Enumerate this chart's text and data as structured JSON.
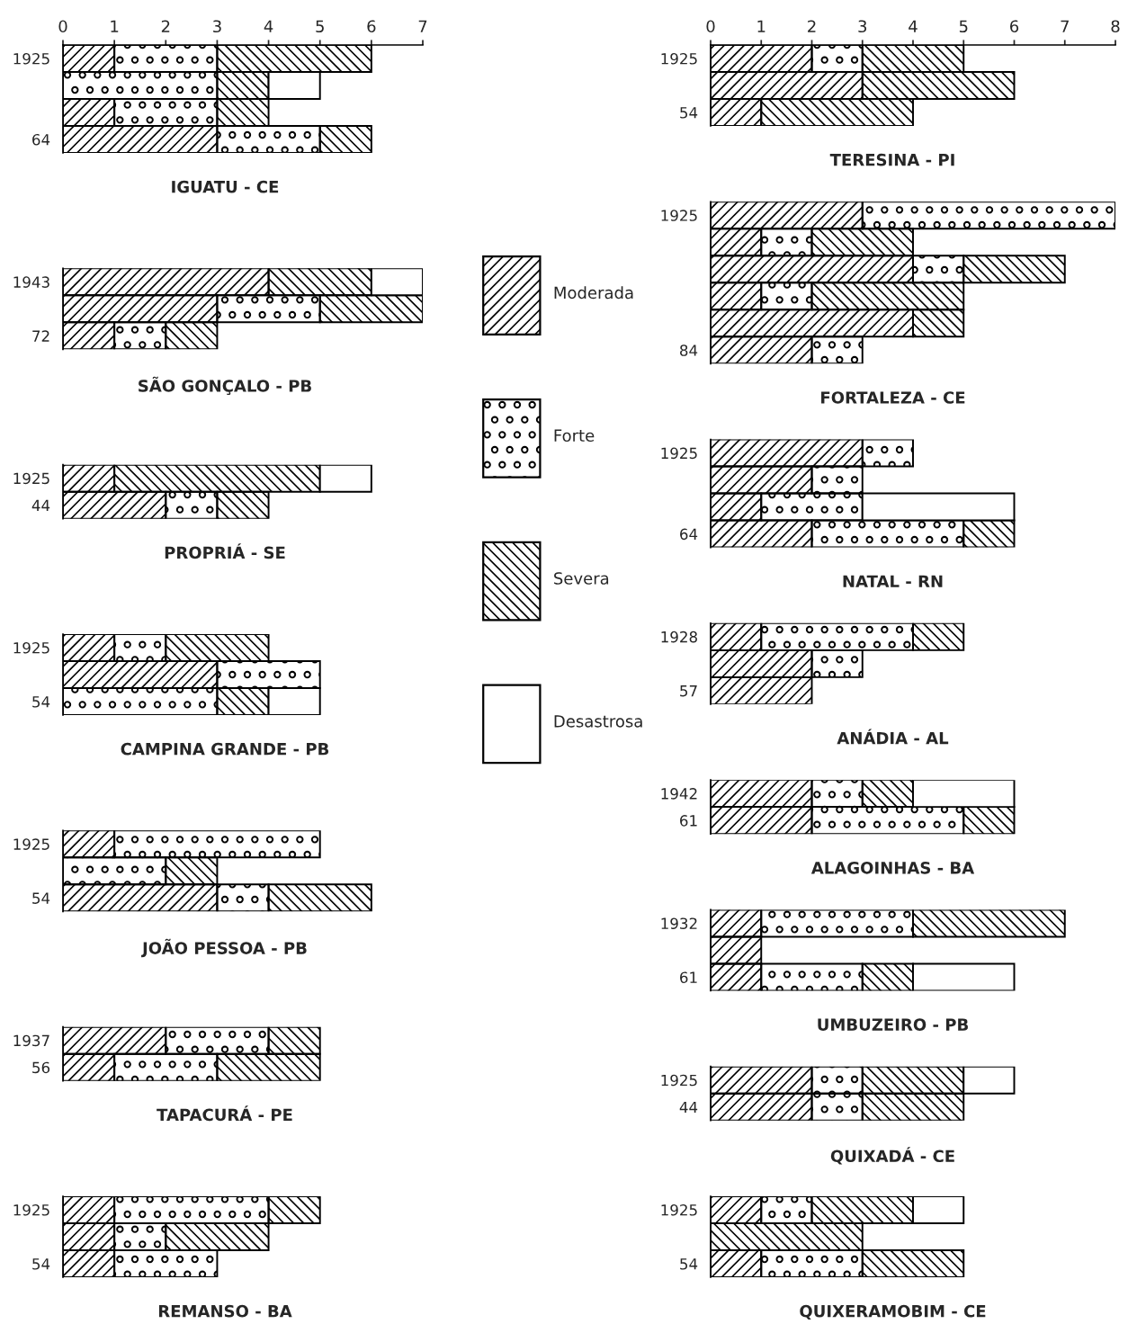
{
  "chart_data": [
    {
      "type": "bar",
      "orientation": "horizontal",
      "stacked": true,
      "title": "IGUATU - CE",
      "categories": [
        "1925",
        null,
        null,
        "64"
      ],
      "xlim": [
        0,
        7
      ],
      "xticks": [
        0,
        1,
        2,
        3,
        4,
        5,
        6,
        7
      ],
      "legend": "right",
      "series": [
        {
          "name": "Moderada",
          "color": "#000000",
          "values": [
            1,
            0,
            1,
            3
          ]
        },
        {
          "name": "Forte",
          "color": "#000000",
          "values": [
            2,
            3,
            2,
            2
          ]
        },
        {
          "name": "Severa",
          "color": "#000000",
          "values": [
            3,
            1,
            1,
            1
          ]
        },
        {
          "name": "Desastrosa",
          "color": "#ffffff",
          "values": [
            0,
            1,
            0,
            0
          ]
        }
      ]
    },
    {
      "type": "bar",
      "orientation": "horizontal",
      "stacked": true,
      "title": "SÃO GONÇALO - PB",
      "categories": [
        "1943",
        null,
        "72"
      ],
      "xlim": [
        0,
        7
      ],
      "tick_labels": "y",
      "series": [
        {
          "color": "#000000",
          "values": [
            4,
            3,
            1
          ]
        },
        {
          "color": "#000000",
          "values": [
            0,
            2,
            1
          ]
        },
        {
          "color": "#000000",
          "values": [
            2,
            2,
            1
          ]
        },
        {
          "color": "#ffffff",
          "values": [
            1,
            0,
            0
          ]
        }
      ]
    },
    {
      "type": "bar",
      "orientation": "horizontal",
      "stacked": true,
      "title": "PROPRIÁ - SE",
      "categories": [
        "1925",
        "44"
      ],
      "xlim": [
        0,
        7
      ],
      "tick_labels": "y",
      "series": [
        {
          "color": "#000000",
          "values": [
            1,
            2
          ]
        },
        {
          "color": "#000000",
          "values": [
            0,
            1
          ]
        },
        {
          "color": "#000000",
          "values": [
            4,
            1
          ]
        },
        {
          "color": "#ffffff",
          "values": [
            1,
            0
          ]
        }
      ]
    },
    {
      "type": "bar",
      "orientation": "horizontal",
      "stacked": true,
      "title": "CAMPINA GRANDE - PB",
      "categories": [
        "1925",
        null,
        "54"
      ],
      "xlim": [
        0,
        7
      ],
      "tick_labels": "y",
      "series": [
        {
          "color": "#000000",
          "values": [
            1,
            3,
            0
          ]
        },
        {
          "color": "#000000",
          "values": [
            1,
            2,
            3
          ]
        },
        {
          "color": "#000000",
          "values": [
            2,
            0,
            1
          ]
        },
        {
          "color": "#ffffff",
          "values": [
            0,
            0,
            1
          ]
        }
      ]
    },
    {
      "type": "bar",
      "orientation": "horizontal",
      "stacked": true,
      "title": "JOÃO PESSOA - PB",
      "categories": [
        "1925",
        null,
        "54"
      ],
      "xlim": [
        0,
        7
      ],
      "tick_labels": "y",
      "series": [
        {
          "color": "#000000",
          "values": [
            1,
            0,
            3
          ]
        },
        {
          "color": "#000000",
          "values": [
            4,
            2,
            1
          ]
        },
        {
          "color": "#000000",
          "values": [
            0,
            1,
            2
          ]
        },
        {
          "color": "#ffffff",
          "values": [
            0,
            0,
            0
          ]
        }
      ]
    },
    {
      "type": "bar",
      "orientation": "horizontal",
      "stacked": true,
      "title": "TAPACURÁ - PE",
      "categories": [
        "1937",
        "56"
      ],
      "xlim": [
        0,
        7
      ],
      "tick_labels": "y",
      "series": [
        {
          "color": "#000000",
          "values": [
            2,
            1
          ]
        },
        {
          "color": "#000000",
          "values": [
            2,
            2
          ]
        },
        {
          "color": "#000000",
          "values": [
            1,
            2
          ]
        },
        {
          "color": "#ffffff",
          "values": [
            0,
            0
          ]
        }
      ]
    },
    {
      "type": "bar",
      "orientation": "horizontal",
      "stacked": true,
      "title": "REMANSO - BA",
      "categories": [
        "1925",
        null,
        "54"
      ],
      "xlim": [
        0,
        7
      ],
      "tick_labels": "y",
      "series": [
        {
          "color": "#000000",
          "values": [
            1,
            1,
            1
          ]
        },
        {
          "color": "#000000",
          "values": [
            3,
            1,
            2
          ]
        },
        {
          "color": "#000000",
          "values": [
            1,
            2,
            0
          ]
        },
        {
          "color": "#ffffff",
          "values": [
            0,
            0,
            0
          ]
        }
      ]
    },
    {
      "type": "bar",
      "orientation": "horizontal",
      "stacked": true,
      "title": "TERESINA - PI",
      "categories": [
        "1925",
        null,
        "54"
      ],
      "xlim": [
        0,
        8
      ],
      "xticks": [
        0,
        1,
        2,
        3,
        4,
        5,
        6,
        7,
        8
      ],
      "series": [
        {
          "color": "#000000",
          "values": [
            2,
            3,
            1
          ]
        },
        {
          "color": "#000000",
          "values": [
            1,
            0,
            0
          ]
        },
        {
          "color": "#000000",
          "values": [
            2,
            3,
            3
          ]
        },
        {
          "color": "#ffffff",
          "values": [
            0,
            0,
            0
          ]
        }
      ]
    },
    {
      "type": "bar",
      "orientation": "horizontal",
      "stacked": true,
      "title": "FORTALEZA - CE",
      "categories": [
        "1925",
        null,
        null,
        null,
        null,
        "84"
      ],
      "xlim": [
        0,
        8
      ],
      "tick_labels": "y",
      "series": [
        {
          "color": "#000000",
          "values": [
            3,
            1,
            4,
            1,
            4,
            2
          ]
        },
        {
          "color": "#000000",
          "values": [
            5,
            1,
            1,
            1,
            0,
            1
          ]
        },
        {
          "color": "#000000",
          "values": [
            0,
            2,
            2,
            3,
            1,
            0
          ]
        },
        {
          "color": "#ffffff",
          "values": [
            0,
            0,
            0,
            0,
            0,
            0
          ]
        }
      ]
    },
    {
      "type": "bar",
      "orientation": "horizontal",
      "stacked": true,
      "title": "NATAL - RN",
      "categories": [
        "1925",
        null,
        null,
        "64"
      ],
      "xlim": [
        0,
        8
      ],
      "tick_labels": "y",
      "series": [
        {
          "color": "#000000",
          "values": [
            3,
            2,
            1,
            2
          ]
        },
        {
          "color": "#000000",
          "values": [
            1,
            1,
            2,
            3
          ]
        },
        {
          "color": "#000000",
          "values": [
            0,
            0,
            0,
            1
          ]
        },
        {
          "color": "#ffffff",
          "values": [
            0,
            0,
            3,
            0
          ]
        }
      ]
    },
    {
      "type": "bar",
      "orientation": "horizontal",
      "stacked": true,
      "title": "ANÁDIA - AL",
      "categories": [
        "1928",
        null,
        "57"
      ],
      "xlim": [
        0,
        8
      ],
      "tick_labels": "y",
      "series": [
        {
          "color": "#000000",
          "values": [
            1,
            2,
            2
          ]
        },
        {
          "color": "#000000",
          "values": [
            3,
            1,
            0
          ]
        },
        {
          "color": "#000000",
          "values": [
            1,
            0,
            0
          ]
        },
        {
          "color": "#ffffff",
          "values": [
            0,
            0,
            0
          ]
        }
      ]
    },
    {
      "type": "bar",
      "orientation": "horizontal",
      "stacked": true,
      "title": "ALAGOINHAS - BA",
      "categories": [
        "1942",
        "61"
      ],
      "xlim": [
        0,
        8
      ],
      "tick_labels": "y",
      "series": [
        {
          "color": "#000000",
          "values": [
            2,
            2
          ]
        },
        {
          "color": "#000000",
          "values": [
            1,
            3
          ]
        },
        {
          "color": "#000000",
          "values": [
            1,
            1
          ]
        },
        {
          "color": "#ffffff",
          "values": [
            2,
            0
          ]
        }
      ]
    },
    {
      "type": "bar",
      "orientation": "horizontal",
      "stacked": true,
      "title": "UMBUZEIRO - PB",
      "categories": [
        "1932",
        null,
        "61"
      ],
      "xlim": [
        0,
        8
      ],
      "tick_labels": "y",
      "series": [
        {
          "color": "#000000",
          "values": [
            1,
            1,
            1
          ]
        },
        {
          "color": "#000000",
          "values": [
            3,
            0,
            2
          ]
        },
        {
          "color": "#000000",
          "values": [
            3,
            0,
            1
          ]
        },
        {
          "color": "#ffffff",
          "values": [
            0,
            0,
            2
          ]
        }
      ]
    },
    {
      "type": "bar",
      "orientation": "horizontal",
      "stacked": true,
      "title": "QUIXADÁ - CE",
      "categories": [
        "1925",
        "44"
      ],
      "xlim": [
        0,
        8
      ],
      "tick_labels": "y",
      "series": [
        {
          "color": "#000000",
          "values": [
            2,
            2
          ]
        },
        {
          "color": "#000000",
          "values": [
            1,
            1
          ]
        },
        {
          "color": "#000000",
          "values": [
            2,
            2
          ]
        },
        {
          "color": "#ffffff",
          "values": [
            1,
            0
          ]
        }
      ]
    },
    {
      "type": "bar",
      "orientation": "horizontal",
      "stacked": true,
      "title": "QUIXERAMOBIM - CE",
      "categories": [
        "1925",
        null,
        "54"
      ],
      "xlim": [
        0,
        8
      ],
      "tick_labels": "y",
      "series": [
        {
          "color": "#000000",
          "values": [
            1,
            0,
            1
          ]
        },
        {
          "color": "#000000",
          "values": [
            1,
            0,
            2
          ]
        },
        {
          "color": "#000000",
          "values": [
            2,
            3,
            2
          ]
        },
        {
          "color": "#ffffff",
          "values": [
            1,
            0,
            0
          ]
        }
      ]
    }
  ]
}
